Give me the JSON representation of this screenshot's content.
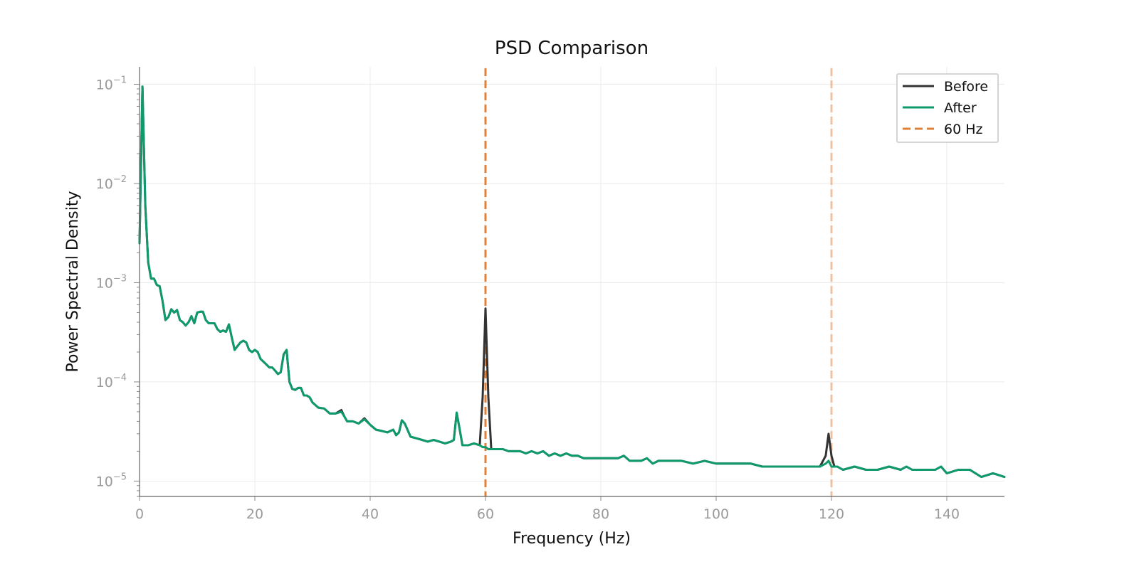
{
  "chart_data": {
    "type": "line",
    "title": "PSD Comparison",
    "xlabel": "Frequency (Hz)",
    "ylabel": "Power Spectral Density",
    "xlim": [
      0,
      150
    ],
    "ylim": [
      7e-06,
      0.15
    ],
    "yscale": "log",
    "xticks": [
      0,
      20,
      40,
      60,
      80,
      100,
      120,
      140
    ],
    "xtick_labels": [
      "0",
      "20",
      "40",
      "60",
      "80",
      "100",
      "120",
      "140"
    ],
    "yticks": [
      1e-05,
      0.0001,
      0.001,
      0.01,
      0.1
    ],
    "ytick_labels": [
      {
        "base": "10",
        "exp": "−5"
      },
      {
        "base": "10",
        "exp": "−4"
      },
      {
        "base": "10",
        "exp": "−3"
      },
      {
        "base": "10",
        "exp": "−2"
      },
      {
        "base": "10",
        "exp": "−1"
      }
    ],
    "grid": true,
    "legend_position": "top-right",
    "series": [
      {
        "name": "Before",
        "color": "#333333",
        "x": [
          0,
          0.5,
          1,
          1.5,
          2,
          2.5,
          3,
          3.5,
          4,
          4.5,
          5,
          5.5,
          6,
          6.5,
          7,
          7.5,
          8,
          8.5,
          9,
          9.5,
          10,
          10.5,
          11,
          11.5,
          12,
          12.5,
          13,
          13.5,
          14,
          14.5,
          15,
          15.5,
          16,
          16.5,
          17,
          17.5,
          18,
          18.5,
          19,
          19.5,
          20,
          20.5,
          21,
          21.5,
          22,
          22.5,
          23,
          23.5,
          24,
          24.5,
          25,
          25.5,
          26,
          26.5,
          27,
          27.5,
          28,
          28.5,
          29,
          29.5,
          30,
          31,
          32,
          33,
          34,
          35,
          35.5,
          36,
          37,
          38,
          39,
          40,
          41,
          42,
          43,
          44,
          44.5,
          45,
          45.5,
          46,
          47,
          48,
          49,
          50,
          51,
          52,
          53,
          54,
          54.5,
          55,
          55.5,
          56,
          57,
          58,
          59,
          59.5,
          60,
          60.5,
          61,
          62,
          63,
          64,
          65,
          66,
          67,
          68,
          69,
          70,
          71,
          72,
          73,
          74,
          75,
          76,
          77,
          78,
          79,
          80,
          81,
          82,
          83,
          84,
          85,
          86,
          87,
          88,
          89,
          90,
          92,
          94,
          96,
          98,
          100,
          102,
          104,
          106,
          108,
          110,
          112,
          114,
          116,
          118,
          119,
          119.5,
          120,
          120.5,
          121,
          122,
          124,
          126,
          128,
          130,
          132,
          133,
          134,
          136,
          138,
          139,
          140,
          142,
          144,
          146,
          148,
          150
        ],
        "y": [
          0.0025,
          0.095,
          0.006,
          0.0016,
          0.0011,
          0.0011,
          0.00095,
          0.00092,
          0.00065,
          0.00042,
          0.00045,
          0.00054,
          0.0005,
          0.00053,
          0.00042,
          0.0004,
          0.00037,
          0.0004,
          0.00046,
          0.00039,
          0.0005,
          0.00051,
          0.00051,
          0.00042,
          0.00039,
          0.00039,
          0.00039,
          0.00034,
          0.00032,
          0.00033,
          0.00032,
          0.00038,
          0.00028,
          0.00021,
          0.00023,
          0.00025,
          0.00026,
          0.00025,
          0.00021,
          0.0002,
          0.00021,
          0.0002,
          0.00017,
          0.00016,
          0.00015,
          0.00014,
          0.00014,
          0.00013,
          0.00012,
          0.000125,
          0.00019,
          0.00021,
          0.0001,
          8.5e-05,
          8.3e-05,
          8.7e-05,
          8.7e-05,
          7.3e-05,
          7.3e-05,
          7e-05,
          6.2e-05,
          5.5e-05,
          5.4e-05,
          4.8e-05,
          4.8e-05,
          5.2e-05,
          4.5e-05,
          4e-05,
          4e-05,
          3.8e-05,
          4.3e-05,
          3.7e-05,
          3.3e-05,
          3.2e-05,
          3.1e-05,
          3.3e-05,
          2.9e-05,
          3.1e-05,
          4.1e-05,
          3.8e-05,
          2.8e-05,
          2.7e-05,
          2.6e-05,
          2.5e-05,
          2.6e-05,
          2.5e-05,
          2.4e-05,
          2.5e-05,
          2.6e-05,
          4.9e-05,
          3.4e-05,
          2.3e-05,
          2.3e-05,
          2.4e-05,
          2.3e-05,
          7e-05,
          0.00055,
          7e-05,
          2.1e-05,
          2.1e-05,
          2.1e-05,
          2e-05,
          2e-05,
          2e-05,
          1.9e-05,
          2e-05,
          1.9e-05,
          2e-05,
          1.8e-05,
          1.9e-05,
          1.8e-05,
          1.9e-05,
          1.8e-05,
          1.8e-05,
          1.7e-05,
          1.7e-05,
          1.7e-05,
          1.7e-05,
          1.7e-05,
          1.7e-05,
          1.7e-05,
          1.8e-05,
          1.6e-05,
          1.6e-05,
          1.6e-05,
          1.7e-05,
          1.5e-05,
          1.6e-05,
          1.6e-05,
          1.6e-05,
          1.5e-05,
          1.6e-05,
          1.5e-05,
          1.5e-05,
          1.5e-05,
          1.5e-05,
          1.4e-05,
          1.4e-05,
          1.4e-05,
          1.4e-05,
          1.4e-05,
          1.4e-05,
          1.8e-05,
          3e-05,
          1.8e-05,
          1.4e-05,
          1.4e-05,
          1.3e-05,
          1.4e-05,
          1.3e-05,
          1.3e-05,
          1.4e-05,
          1.3e-05,
          1.4e-05,
          1.3e-05,
          1.3e-05,
          1.3e-05,
          1.4e-05,
          1.2e-05,
          1.3e-05,
          1.3e-05,
          1.1e-05,
          1.2e-05,
          1.1e-05
        ]
      },
      {
        "name": "After",
        "color": "#0f9a6e",
        "x": [
          0,
          0.5,
          1,
          1.5,
          2,
          2.5,
          3,
          3.5,
          4,
          4.5,
          5,
          5.5,
          6,
          6.5,
          7,
          7.5,
          8,
          8.5,
          9,
          9.5,
          10,
          10.5,
          11,
          11.5,
          12,
          12.5,
          13,
          13.5,
          14,
          14.5,
          15,
          15.5,
          16,
          16.5,
          17,
          17.5,
          18,
          18.5,
          19,
          19.5,
          20,
          20.5,
          21,
          21.5,
          22,
          22.5,
          23,
          23.5,
          24,
          24.5,
          25,
          25.5,
          26,
          26.5,
          27,
          27.5,
          28,
          28.5,
          29,
          29.5,
          30,
          31,
          32,
          33,
          34,
          35,
          35.5,
          36,
          37,
          38,
          39,
          40,
          41,
          42,
          43,
          44,
          44.5,
          45,
          45.5,
          46,
          47,
          48,
          49,
          50,
          51,
          52,
          53,
          54,
          54.5,
          55,
          55.5,
          56,
          57,
          58,
          59,
          59.5,
          60,
          60.5,
          61,
          62,
          63,
          64,
          65,
          66,
          67,
          68,
          69,
          70,
          71,
          72,
          73,
          74,
          75,
          76,
          77,
          78,
          79,
          80,
          81,
          82,
          83,
          84,
          85,
          86,
          87,
          88,
          89,
          90,
          92,
          94,
          96,
          98,
          100,
          102,
          104,
          106,
          108,
          110,
          112,
          114,
          116,
          118,
          119,
          119.5,
          120,
          120.5,
          121,
          122,
          124,
          126,
          128,
          130,
          132,
          133,
          134,
          136,
          138,
          139,
          140,
          142,
          144,
          146,
          148,
          150
        ],
        "y": [
          0.0025,
          0.095,
          0.006,
          0.0016,
          0.0011,
          0.0011,
          0.00095,
          0.00092,
          0.00065,
          0.00042,
          0.00045,
          0.00054,
          0.0005,
          0.00053,
          0.00042,
          0.0004,
          0.00037,
          0.0004,
          0.00046,
          0.00039,
          0.0005,
          0.00051,
          0.00051,
          0.00042,
          0.00039,
          0.00039,
          0.00039,
          0.00034,
          0.00032,
          0.00033,
          0.00032,
          0.00038,
          0.00028,
          0.00021,
          0.00023,
          0.00025,
          0.00026,
          0.00025,
          0.00021,
          0.0002,
          0.00021,
          0.0002,
          0.00017,
          0.00016,
          0.00015,
          0.00014,
          0.00014,
          0.00013,
          0.00012,
          0.000125,
          0.00019,
          0.00021,
          0.0001,
          8.5e-05,
          8.3e-05,
          8.7e-05,
          8.7e-05,
          7.3e-05,
          7.3e-05,
          7e-05,
          6.2e-05,
          5.5e-05,
          5.4e-05,
          4.8e-05,
          4.8e-05,
          5e-05,
          4.5e-05,
          4e-05,
          4e-05,
          3.8e-05,
          4.2e-05,
          3.7e-05,
          3.3e-05,
          3.2e-05,
          3.1e-05,
          3.3e-05,
          2.9e-05,
          3.1e-05,
          4.1e-05,
          3.8e-05,
          2.8e-05,
          2.7e-05,
          2.6e-05,
          2.5e-05,
          2.6e-05,
          2.5e-05,
          2.4e-05,
          2.5e-05,
          2.6e-05,
          4.9e-05,
          3.4e-05,
          2.3e-05,
          2.3e-05,
          2.4e-05,
          2.3e-05,
          2.2e-05,
          2.2e-05,
          2.1e-05,
          2.1e-05,
          2.1e-05,
          2.1e-05,
          2e-05,
          2e-05,
          2e-05,
          1.9e-05,
          2e-05,
          1.9e-05,
          2e-05,
          1.8e-05,
          1.9e-05,
          1.8e-05,
          1.9e-05,
          1.8e-05,
          1.8e-05,
          1.7e-05,
          1.7e-05,
          1.7e-05,
          1.7e-05,
          1.7e-05,
          1.7e-05,
          1.7e-05,
          1.8e-05,
          1.6e-05,
          1.6e-05,
          1.6e-05,
          1.7e-05,
          1.5e-05,
          1.6e-05,
          1.6e-05,
          1.6e-05,
          1.5e-05,
          1.6e-05,
          1.5e-05,
          1.5e-05,
          1.5e-05,
          1.5e-05,
          1.4e-05,
          1.4e-05,
          1.4e-05,
          1.4e-05,
          1.4e-05,
          1.4e-05,
          1.5e-05,
          1.6e-05,
          1.4e-05,
          1.4e-05,
          1.4e-05,
          1.3e-05,
          1.4e-05,
          1.3e-05,
          1.3e-05,
          1.4e-05,
          1.3e-05,
          1.4e-05,
          1.3e-05,
          1.3e-05,
          1.3e-05,
          1.4e-05,
          1.2e-05,
          1.3e-05,
          1.3e-05,
          1.1e-05,
          1.2e-05,
          1.1e-05
        ]
      }
    ],
    "vlines": [
      {
        "name": "60 Hz",
        "x": 60,
        "color": "#e0813a",
        "opacity": 1
      },
      {
        "x": 120,
        "color": "#e0813a",
        "opacity": 0.45
      }
    ],
    "legend": [
      {
        "label": "Before",
        "color": "#333333",
        "style": "solid"
      },
      {
        "label": "After",
        "color": "#0f9a6e",
        "style": "solid"
      },
      {
        "label": "60 Hz",
        "color": "#e0813a",
        "style": "dashed"
      }
    ]
  }
}
